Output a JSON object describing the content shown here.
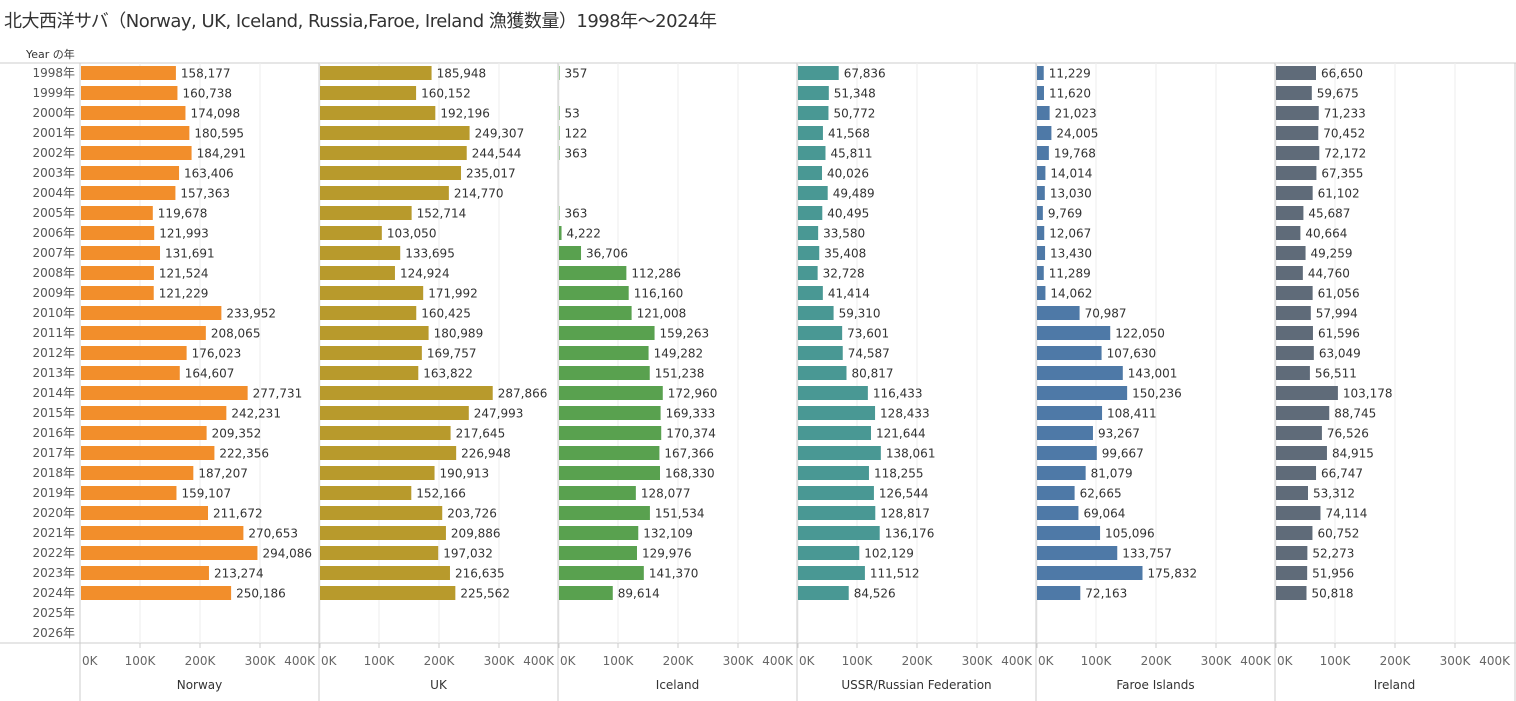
{
  "title": "北大西洋サバ（Norway, UK, Iceland, Russia,Faroe, Ireland 漁獲数量）1998年〜2024年",
  "chart_data": {
    "type": "bar",
    "orientation": "horizontal",
    "title": "北大西洋サバ（Norway, UK, Iceland, Russia,Faroe, Ireland 漁獲数量）1998年〜2024年",
    "row_header": "Year の年",
    "categories": [
      "1998年",
      "1999年",
      "2000年",
      "2001年",
      "2002年",
      "2003年",
      "2004年",
      "2005年",
      "2006年",
      "2007年",
      "2008年",
      "2009年",
      "2010年",
      "2011年",
      "2012年",
      "2013年",
      "2014年",
      "2015年",
      "2016年",
      "2017年",
      "2018年",
      "2019年",
      "2020年",
      "2021年",
      "2022年",
      "2023年",
      "2024年",
      "2025年",
      "2026年"
    ],
    "xlim": [
      0,
      400000
    ],
    "x_ticks": [
      "0K",
      "100K",
      "200K",
      "300K",
      "400K"
    ],
    "grid": true,
    "series": [
      {
        "name": "Norway",
        "color": "#f28e2b",
        "values": [
          158177,
          160738,
          174098,
          180595,
          184291,
          163406,
          157363,
          119678,
          121993,
          131691,
          121524,
          121229,
          233952,
          208065,
          176023,
          164607,
          277731,
          242231,
          209352,
          222356,
          187207,
          159107,
          211672,
          270653,
          294086,
          213274,
          250186,
          null,
          null
        ]
      },
      {
        "name": "UK",
        "color": "#b89a2c",
        "values": [
          185948,
          160152,
          192196,
          249307,
          244544,
          235017,
          214770,
          152714,
          103050,
          133695,
          124924,
          171992,
          160425,
          180989,
          169757,
          163822,
          287866,
          247993,
          217645,
          226948,
          190913,
          152166,
          203726,
          209886,
          197032,
          216635,
          225562,
          null,
          null
        ]
      },
      {
        "name": "Iceland",
        "color": "#59a14f",
        "values": [
          357,
          null,
          53,
          122,
          363,
          null,
          null,
          363,
          4222,
          36706,
          112286,
          116160,
          121008,
          159263,
          149282,
          151238,
          172960,
          169333,
          170374,
          167366,
          168330,
          128077,
          151534,
          132109,
          129976,
          141370,
          89614,
          null,
          null
        ]
      },
      {
        "name": "USSR/Russian Federation",
        "color": "#499894",
        "values": [
          67836,
          51348,
          50772,
          41568,
          45811,
          40026,
          49489,
          40495,
          33580,
          35408,
          32728,
          41414,
          59310,
          73601,
          74587,
          80817,
          116433,
          128433,
          121644,
          138061,
          118255,
          126544,
          128817,
          136176,
          102129,
          111512,
          84526,
          null,
          null
        ]
      },
      {
        "name": "Faroe Islands",
        "color": "#4e79a7",
        "values": [
          11229,
          11620,
          21023,
          24005,
          19768,
          14014,
          13030,
          9769,
          12067,
          13430,
          11289,
          14062,
          70987,
          122050,
          107630,
          143001,
          150236,
          108411,
          93267,
          99667,
          81079,
          62665,
          69064,
          105096,
          133757,
          175832,
          72163,
          null,
          null
        ]
      },
      {
        "name": "Ireland",
        "color": "#5f6b79",
        "values": [
          66650,
          59675,
          71233,
          70452,
          72172,
          67355,
          61102,
          45687,
          40664,
          49259,
          44760,
          61056,
          57994,
          61596,
          63049,
          56511,
          103178,
          88745,
          76526,
          84915,
          66747,
          53312,
          74114,
          60752,
          52273,
          51956,
          50818,
          null,
          null
        ]
      }
    ]
  }
}
